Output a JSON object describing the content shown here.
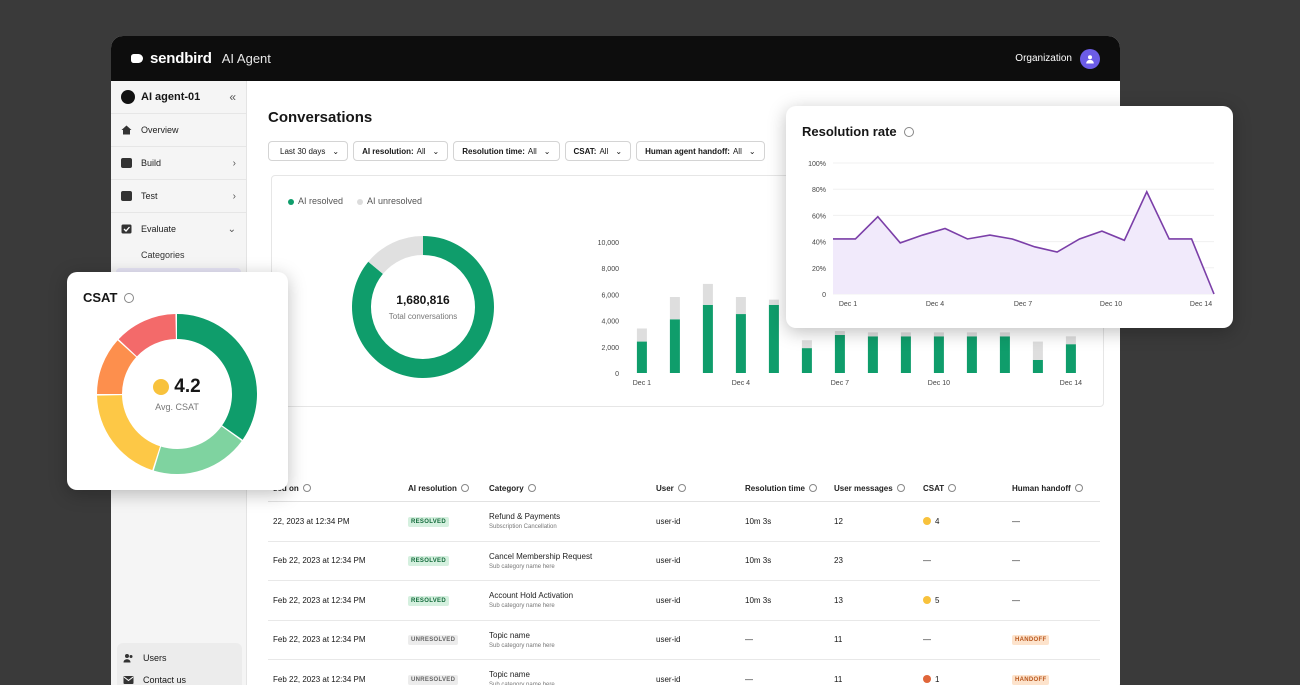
{
  "topbar": {
    "brand": "sendbird",
    "product": "AI Agent",
    "org": "Organization"
  },
  "sidebar": {
    "agent": "AI agent-01",
    "collapse_icon": "«",
    "items": [
      {
        "label": "Overview",
        "chevron": ""
      },
      {
        "label": "Build",
        "chevron": "›"
      },
      {
        "label": "Test",
        "chevron": "›"
      },
      {
        "label": "Evaluate",
        "chevron": "⌄"
      }
    ],
    "sub_items": [
      "Categories"
    ],
    "bottom": [
      "Users",
      "Contact us"
    ]
  },
  "page": {
    "title": "Conversations"
  },
  "filters": [
    {
      "prefix": "",
      "value": "Last 30 days"
    },
    {
      "prefix": "AI resolution:",
      "value": "All"
    },
    {
      "prefix": "Resolution time:",
      "value": "All"
    },
    {
      "prefix": "CSAT:",
      "value": "All"
    },
    {
      "prefix": "Human agent handoff:",
      "value": "All"
    }
  ],
  "overview": {
    "legend": [
      "AI resolved",
      "AI unresolved"
    ],
    "total": "1,680,816",
    "total_label": "Total conversations",
    "resolved_fraction": 0.86,
    "colors": {
      "resolved": "#0f9d6b",
      "unresolved": "#e0e0e0"
    }
  },
  "chart_data": [
    {
      "type": "bar",
      "stacked": true,
      "categories": [
        "Dec 1",
        "Dec 2",
        "Dec 3",
        "Dec 4",
        "Dec 5",
        "Dec 6",
        "Dec 7",
        "Dec 8",
        "Dec 9",
        "Dec 10",
        "Dec 11",
        "Dec 12",
        "Dec 13",
        "Dec 14"
      ],
      "x_tick_labels": [
        "Dec 1",
        "Dec 4",
        "Dec 7",
        "Dec 10",
        "Dec 14"
      ],
      "y_ticks": [
        "10,000",
        "8,000",
        "6,000",
        "4,000",
        "2,000",
        "0"
      ],
      "ylim": [
        0,
        10000
      ],
      "series": [
        {
          "name": "AI resolved",
          "values": [
            2400,
            4100,
            5200,
            4500,
            5200,
            1900,
            2900,
            2800,
            2800,
            2800,
            2800,
            2800,
            1000,
            2200
          ]
        },
        {
          "name": "AI unresolved",
          "values": [
            1000,
            1700,
            1600,
            1300,
            400,
            600,
            300,
            300,
            300,
            300,
            300,
            300,
            1400,
            600
          ]
        }
      ]
    },
    {
      "type": "area",
      "title": "Resolution rate",
      "x_tick_labels": [
        "Dec 1",
        "Dec 4",
        "Dec 7",
        "Dec 10",
        "Dec 14"
      ],
      "y_ticks": [
        "100%",
        "80%",
        "60%",
        "40%",
        "20%",
        "0"
      ],
      "ylim": [
        0,
        100
      ],
      "values": [
        42,
        42,
        59,
        39,
        45,
        50,
        42,
        45,
        42,
        36,
        32,
        42,
        48,
        41,
        78,
        42,
        42,
        0
      ]
    },
    {
      "type": "pie",
      "title": "CSAT",
      "center_value": "4.2",
      "center_label": "Avg. CSAT",
      "slices": [
        {
          "value": 35,
          "color": "#0f9d6b"
        },
        {
          "value": 20,
          "color": "#7fd3a0"
        },
        {
          "value": 20,
          "color": "#fdc846"
        },
        {
          "value": 12,
          "color": "#fd8f4d"
        },
        {
          "value": 13,
          "color": "#f36a6a"
        }
      ]
    }
  ],
  "table": {
    "headers": [
      "sed on",
      "AI resolution",
      "Category",
      "User",
      "Resolution time",
      "User messages",
      "CSAT",
      "Human handoff"
    ],
    "rows": [
      {
        "date": "22, 2023 at 12:34 PM",
        "status": "RESOLVED",
        "status_kind": "resolved",
        "cat": "Refund & Payments",
        "sub": "Subscription Cancellation",
        "user": "user-id",
        "time": "10m 3s",
        "msgs": "12",
        "csat": "4",
        "csat_color": "#f8c23c",
        "handoff": "—",
        "handoff_badge": false
      },
      {
        "date": "Feb 22, 2023 at 12:34 PM",
        "status": "RESOLVED",
        "status_kind": "resolved",
        "cat": "Cancel Membership Request",
        "sub": "Sub category name here",
        "user": "user-id",
        "time": "10m 3s",
        "msgs": "23",
        "csat": "—",
        "csat_color": "",
        "handoff": "—",
        "handoff_badge": false
      },
      {
        "date": "Feb 22, 2023 at 12:34 PM",
        "status": "RESOLVED",
        "status_kind": "resolved",
        "cat": "Account Hold Activation",
        "sub": "Sub category name here",
        "user": "user-id",
        "time": "10m 3s",
        "msgs": "13",
        "csat": "5",
        "csat_color": "#f8c23c",
        "handoff": "—",
        "handoff_badge": false
      },
      {
        "date": "Feb 22, 2023 at 12:34 PM",
        "status": "UNRESOLVED",
        "status_kind": "unresolved",
        "cat": "Topic name",
        "sub": "Sub category name here",
        "user": "user-id",
        "time": "—",
        "msgs": "11",
        "csat": "—",
        "csat_color": "",
        "handoff": "HANDOFF",
        "handoff_badge": true
      },
      {
        "date": "Feb 22, 2023 at 12:34 PM",
        "status": "UNRESOLVED",
        "status_kind": "unresolved",
        "cat": "Topic name",
        "sub": "Sub category name here",
        "user": "user-id",
        "time": "—",
        "msgs": "11",
        "csat": "1",
        "csat_color": "#e0663a",
        "handoff": "HANDOFF",
        "handoff_badge": true
      }
    ]
  }
}
